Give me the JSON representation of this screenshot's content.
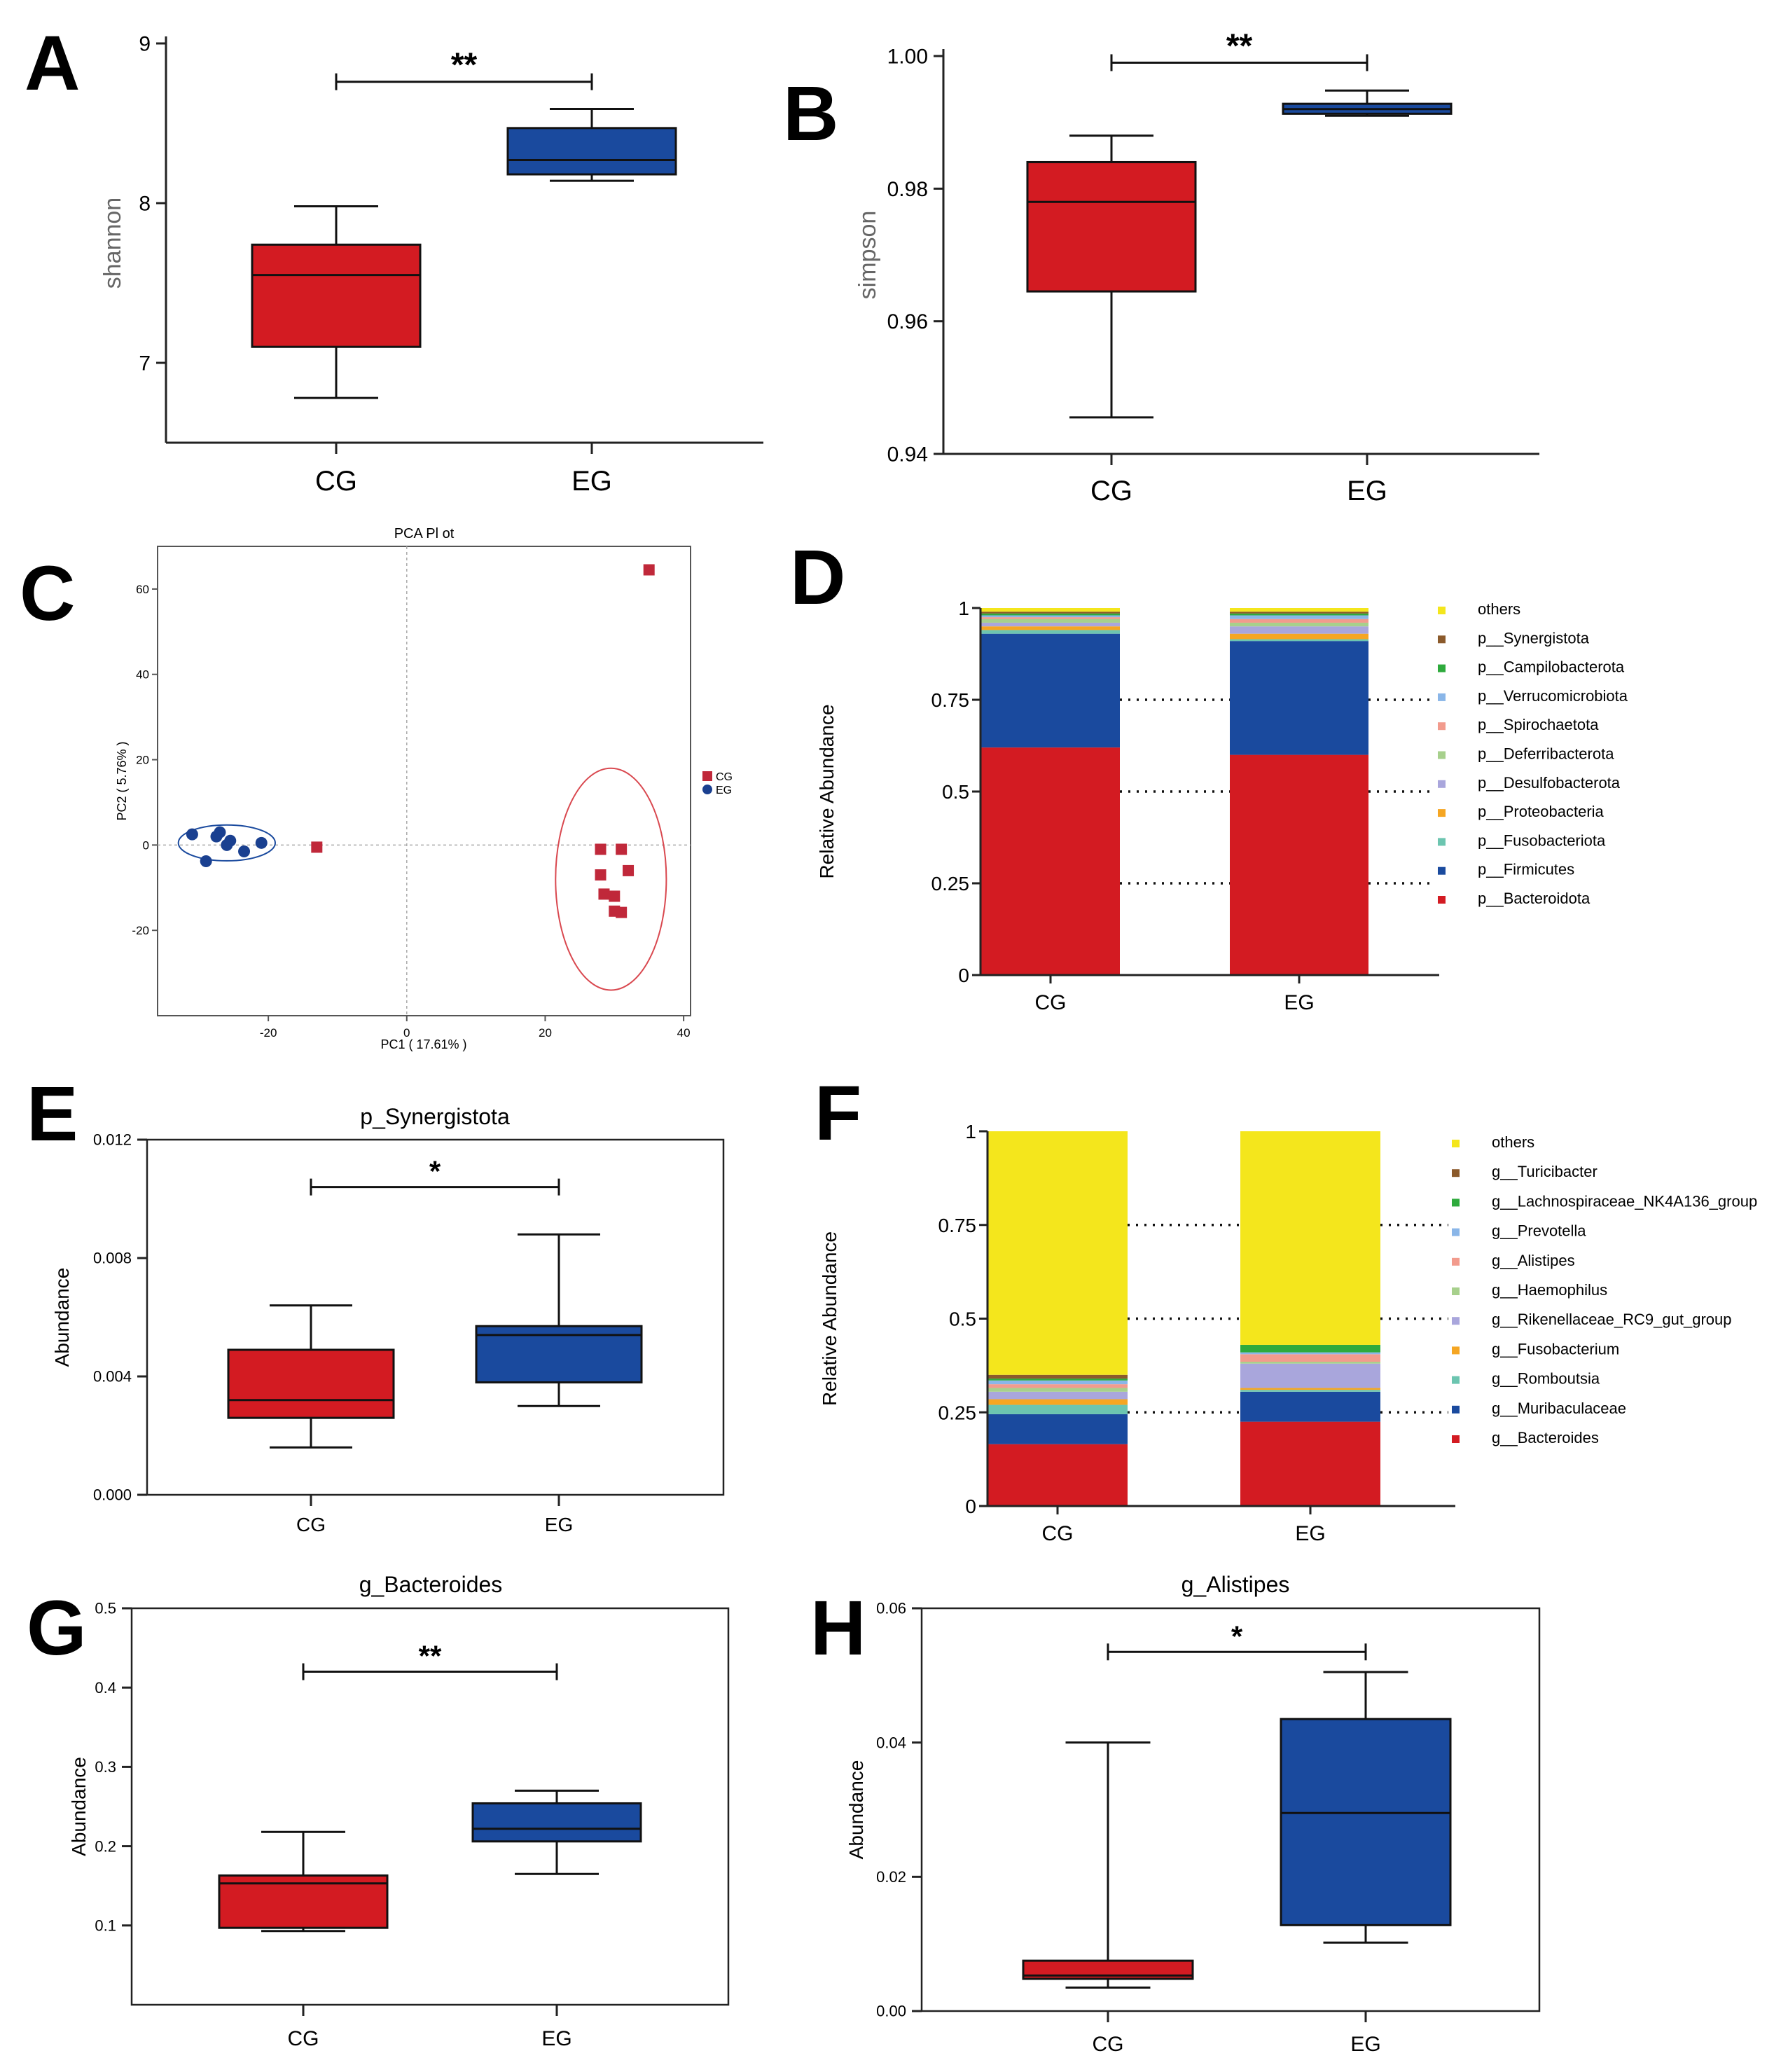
{
  "colors": {
    "cg_box": "#d31b22",
    "eg_box": "#1a4a9e",
    "axis": "#222222"
  },
  "chart_data": [
    {
      "id": "A",
      "panel_label": "A",
      "type": "box",
      "title": "",
      "xlabel": "",
      "ylabel": "shannon",
      "ylim": [
        6.5,
        9
      ],
      "yticks": [
        7,
        8,
        9
      ],
      "ytick_labels": [
        "7",
        "8",
        "9"
      ],
      "categories": [
        "CG",
        "EG"
      ],
      "boxes": [
        {
          "group": "CG",
          "min": 6.78,
          "q1": 7.1,
          "median": 7.55,
          "q3": 7.74,
          "max": 7.98
        },
        {
          "group": "EG",
          "min": 8.14,
          "q1": 8.18,
          "median": 8.27,
          "q3": 8.47,
          "max": 8.59
        }
      ],
      "significance": "**",
      "sig_y": 8.76
    },
    {
      "id": "B",
      "panel_label": "B",
      "type": "box",
      "title": "",
      "xlabel": "",
      "ylabel": "simpson",
      "ylim": [
        0.94,
        1.0
      ],
      "yticks": [
        0.94,
        0.96,
        0.98,
        1.0
      ],
      "ytick_labels": [
        "0.94",
        "0.96",
        "0.98",
        "1.00"
      ],
      "categories": [
        "CG",
        "EG"
      ],
      "boxes": [
        {
          "group": "CG",
          "min": 0.9455,
          "q1": 0.9645,
          "median": 0.978,
          "q3": 0.984,
          "max": 0.988
        },
        {
          "group": "EG",
          "min": 0.991,
          "q1": 0.9913,
          "median": 0.992,
          "q3": 0.9928,
          "max": 0.9948
        }
      ],
      "significance": "**",
      "sig_y": 0.999
    },
    {
      "id": "C",
      "panel_label": "C",
      "type": "scatter",
      "title": "PCA Pl ot",
      "xlabel": "PC1 ( 17.61% )",
      "ylabel": "PC2 ( 5.76% )",
      "xlim": [
        -36,
        41
      ],
      "ylim": [
        -40,
        70
      ],
      "xticks": [
        -20,
        0,
        20,
        40
      ],
      "xtick_labels": [
        "-20",
        "0",
        "20",
        "40"
      ],
      "yticks": [
        -20,
        0,
        20,
        40,
        60
      ],
      "ytick_labels": [
        "-20",
        "0",
        "20",
        "40",
        "60"
      ],
      "legend": [
        {
          "name": "CG",
          "marker": "square"
        },
        {
          "name": "EG",
          "marker": "circle"
        }
      ],
      "series": [
        {
          "name": "CG",
          "points": [
            [
              35,
              64.5
            ],
            [
              -13,
              -0.5
            ],
            [
              28,
              -1
            ],
            [
              31,
              -1
            ],
            [
              28,
              -7
            ],
            [
              32,
              -6
            ],
            [
              28.5,
              -11.5
            ],
            [
              30,
              -12
            ],
            [
              30,
              -15.5
            ],
            [
              31,
              -15.8
            ]
          ]
        },
        {
          "name": "EG",
          "points": [
            [
              -31,
              2.5
            ],
            [
              -27,
              3
            ],
            [
              -27.5,
              2
            ],
            [
              -25.5,
              1
            ],
            [
              -26,
              0
            ],
            [
              -23.5,
              -1.5
            ],
            [
              -21,
              0.5
            ],
            [
              -29,
              -3.8
            ]
          ]
        }
      ],
      "ellipses": [
        {
          "group": "EG",
          "cx": -26,
          "cy": 0.5,
          "rx": 7,
          "ry": 4.2
        },
        {
          "group": "CG",
          "cx": 29.5,
          "cy": -8,
          "rx": 8,
          "ry": 26
        }
      ]
    },
    {
      "id": "D",
      "panel_label": "D",
      "type": "stacked_bar",
      "title": "",
      "xlabel": "",
      "ylabel": "Relative Abundance",
      "ylim": [
        0,
        1
      ],
      "yticks": [
        0,
        0.25,
        0.5,
        0.75,
        1
      ],
      "ytick_labels": [
        "0",
        "0.25",
        "0.5",
        "0.75",
        "1"
      ],
      "categories": [
        "CG",
        "EG"
      ],
      "series": [
        {
          "name": "p__Bacteroidota",
          "color": "#d31b22",
          "values": [
            0.62,
            0.6
          ]
        },
        {
          "name": "p__Firmicutes",
          "color": "#1a4a9e",
          "values": [
            0.31,
            0.31
          ]
        },
        {
          "name": "p__Fusobacteriota",
          "color": "#6cc5b0",
          "values": [
            0.01,
            0.005
          ]
        },
        {
          "name": "p__Proteobacteria",
          "color": "#f5a623",
          "values": [
            0.01,
            0.015
          ]
        },
        {
          "name": "p__Desulfobacterota",
          "color": "#a9a6dc",
          "values": [
            0.01,
            0.02
          ]
        },
        {
          "name": "p__Deferribacterota",
          "color": "#a7d08c",
          "values": [
            0.01,
            0.01
          ]
        },
        {
          "name": "p__Spirochaetota",
          "color": "#f29b8d",
          "values": [
            0.005,
            0.01
          ]
        },
        {
          "name": "p__Verrucomicrobiota",
          "color": "#8ab6e8",
          "values": [
            0.005,
            0.01
          ]
        },
        {
          "name": "p__Campilobacterota",
          "color": "#2eaa3c",
          "values": [
            0.005,
            0.005
          ]
        },
        {
          "name": "p__Synergistota",
          "color": "#8b5a2b",
          "values": [
            0.005,
            0.005
          ]
        },
        {
          "name": "others",
          "color": "#f4e61c",
          "values": [
            0.01,
            0.01
          ]
        }
      ],
      "legend_order": [
        "others",
        "p__Synergistota",
        "p__Campilobacterota",
        "p__Verrucomicrobiota",
        "p__Spirochaetota",
        "p__Deferribacterota",
        "p__Desulfobacterota",
        "p__Proteobacteria",
        "p__Fusobacteriota",
        "p__Firmicutes",
        "p__Bacteroidota"
      ]
    },
    {
      "id": "E",
      "panel_label": "E",
      "type": "box",
      "title": "p_Synergistota",
      "xlabel": "",
      "ylabel": "Abundance",
      "ylim": [
        0,
        0.012
      ],
      "yticks": [
        0,
        0.004,
        0.008,
        0.012
      ],
      "ytick_labels": [
        "0.000",
        "0.004",
        "0.008",
        "0.012"
      ],
      "categories": [
        "CG",
        "EG"
      ],
      "boxes": [
        {
          "group": "CG",
          "min": 0.0016,
          "q1": 0.0026,
          "median": 0.0032,
          "q3": 0.0049,
          "max": 0.0064
        },
        {
          "group": "EG",
          "min": 0.003,
          "q1": 0.0038,
          "median": 0.0054,
          "q3": 0.0057,
          "max": 0.0088
        }
      ],
      "significance": "*",
      "sig_y": 0.0104
    },
    {
      "id": "F",
      "panel_label": "F",
      "type": "stacked_bar",
      "title": "",
      "xlabel": "",
      "ylabel": "Relative Abundance",
      "ylim": [
        0,
        1
      ],
      "yticks": [
        0,
        0.25,
        0.5,
        0.75,
        1
      ],
      "ytick_labels": [
        "0",
        "0.25",
        "0.5",
        "0.75",
        "1"
      ],
      "categories": [
        "CG",
        "EG"
      ],
      "series": [
        {
          "name": "g__Bacteroides",
          "color": "#d31b22",
          "values": [
            0.165,
            0.225
          ]
        },
        {
          "name": "g__Muribaculaceae",
          "color": "#1a4a9e",
          "values": [
            0.08,
            0.08
          ]
        },
        {
          "name": "g__Romboutsia",
          "color": "#6cc5b0",
          "values": [
            0.025,
            0.005
          ]
        },
        {
          "name": "g__Fusobacterium",
          "color": "#f5a623",
          "values": [
            0.015,
            0.005
          ]
        },
        {
          "name": "g__Rikenellaceae_RC9_gut_group",
          "color": "#a9a6dc",
          "values": [
            0.02,
            0.065
          ]
        },
        {
          "name": "g__Haemophilus",
          "color": "#a7d08c",
          "values": [
            0.01,
            0.005
          ]
        },
        {
          "name": "g__Alistipes",
          "color": "#f29b8d",
          "values": [
            0.01,
            0.02
          ]
        },
        {
          "name": "g__Prevotella",
          "color": "#8ab6e8",
          "values": [
            0.01,
            0.005
          ]
        },
        {
          "name": "g__Lachnospiraceae_NK4A136_group",
          "color": "#2eaa3c",
          "values": [
            0.005,
            0.02
          ]
        },
        {
          "name": "g__Turicibacter",
          "color": "#8b5a2b",
          "values": [
            0.01,
            0.0
          ]
        },
        {
          "name": "others",
          "color": "#f4e61c",
          "values": [
            0.65,
            0.57
          ]
        }
      ],
      "legend_order": [
        "others",
        "g__Turicibacter",
        "g__Lachnospiraceae_NK4A136_group",
        "g__Prevotella",
        "g__Alistipes",
        "g__Haemophilus",
        "g__Rikenellaceae_RC9_gut_group",
        "g__Fusobacterium",
        "g__Romboutsia",
        "g__Muribaculaceae",
        "g__Bacteroides"
      ]
    },
    {
      "id": "G",
      "panel_label": "G",
      "type": "box",
      "title": "g_Bacteroides",
      "xlabel": "",
      "ylabel": "Abundance",
      "ylim": [
        0,
        0.5
      ],
      "yticks": [
        0.1,
        0.2,
        0.3,
        0.4,
        0.5
      ],
      "ytick_labels": [
        "0.1",
        "0.2",
        "0.3",
        "0.4",
        "0.5"
      ],
      "categories": [
        "CG",
        "EG"
      ],
      "boxes": [
        {
          "group": "CG",
          "min": 0.093,
          "q1": 0.097,
          "median": 0.153,
          "q3": 0.163,
          "max": 0.218
        },
        {
          "group": "EG",
          "min": 0.165,
          "q1": 0.206,
          "median": 0.222,
          "q3": 0.254,
          "max": 0.27
        }
      ],
      "significance": "**",
      "sig_y": 0.42
    },
    {
      "id": "H",
      "panel_label": "H",
      "type": "box",
      "title": "g_Alistipes",
      "xlabel": "",
      "ylabel": "Abundance",
      "ylim": [
        0,
        0.06
      ],
      "yticks": [
        0,
        0.02,
        0.04,
        0.06
      ],
      "ytick_labels": [
        "0.00",
        "0.02",
        "0.04",
        "0.06"
      ],
      "categories": [
        "CG",
        "EG"
      ],
      "boxes": [
        {
          "group": "CG",
          "min": 0.0035,
          "q1": 0.0048,
          "median": 0.0053,
          "q3": 0.0075,
          "max": 0.04
        },
        {
          "group": "EG",
          "min": 0.0102,
          "q1": 0.0128,
          "median": 0.0295,
          "q3": 0.0435,
          "max": 0.0505
        }
      ],
      "significance": "*",
      "sig_y": 0.0535
    }
  ]
}
